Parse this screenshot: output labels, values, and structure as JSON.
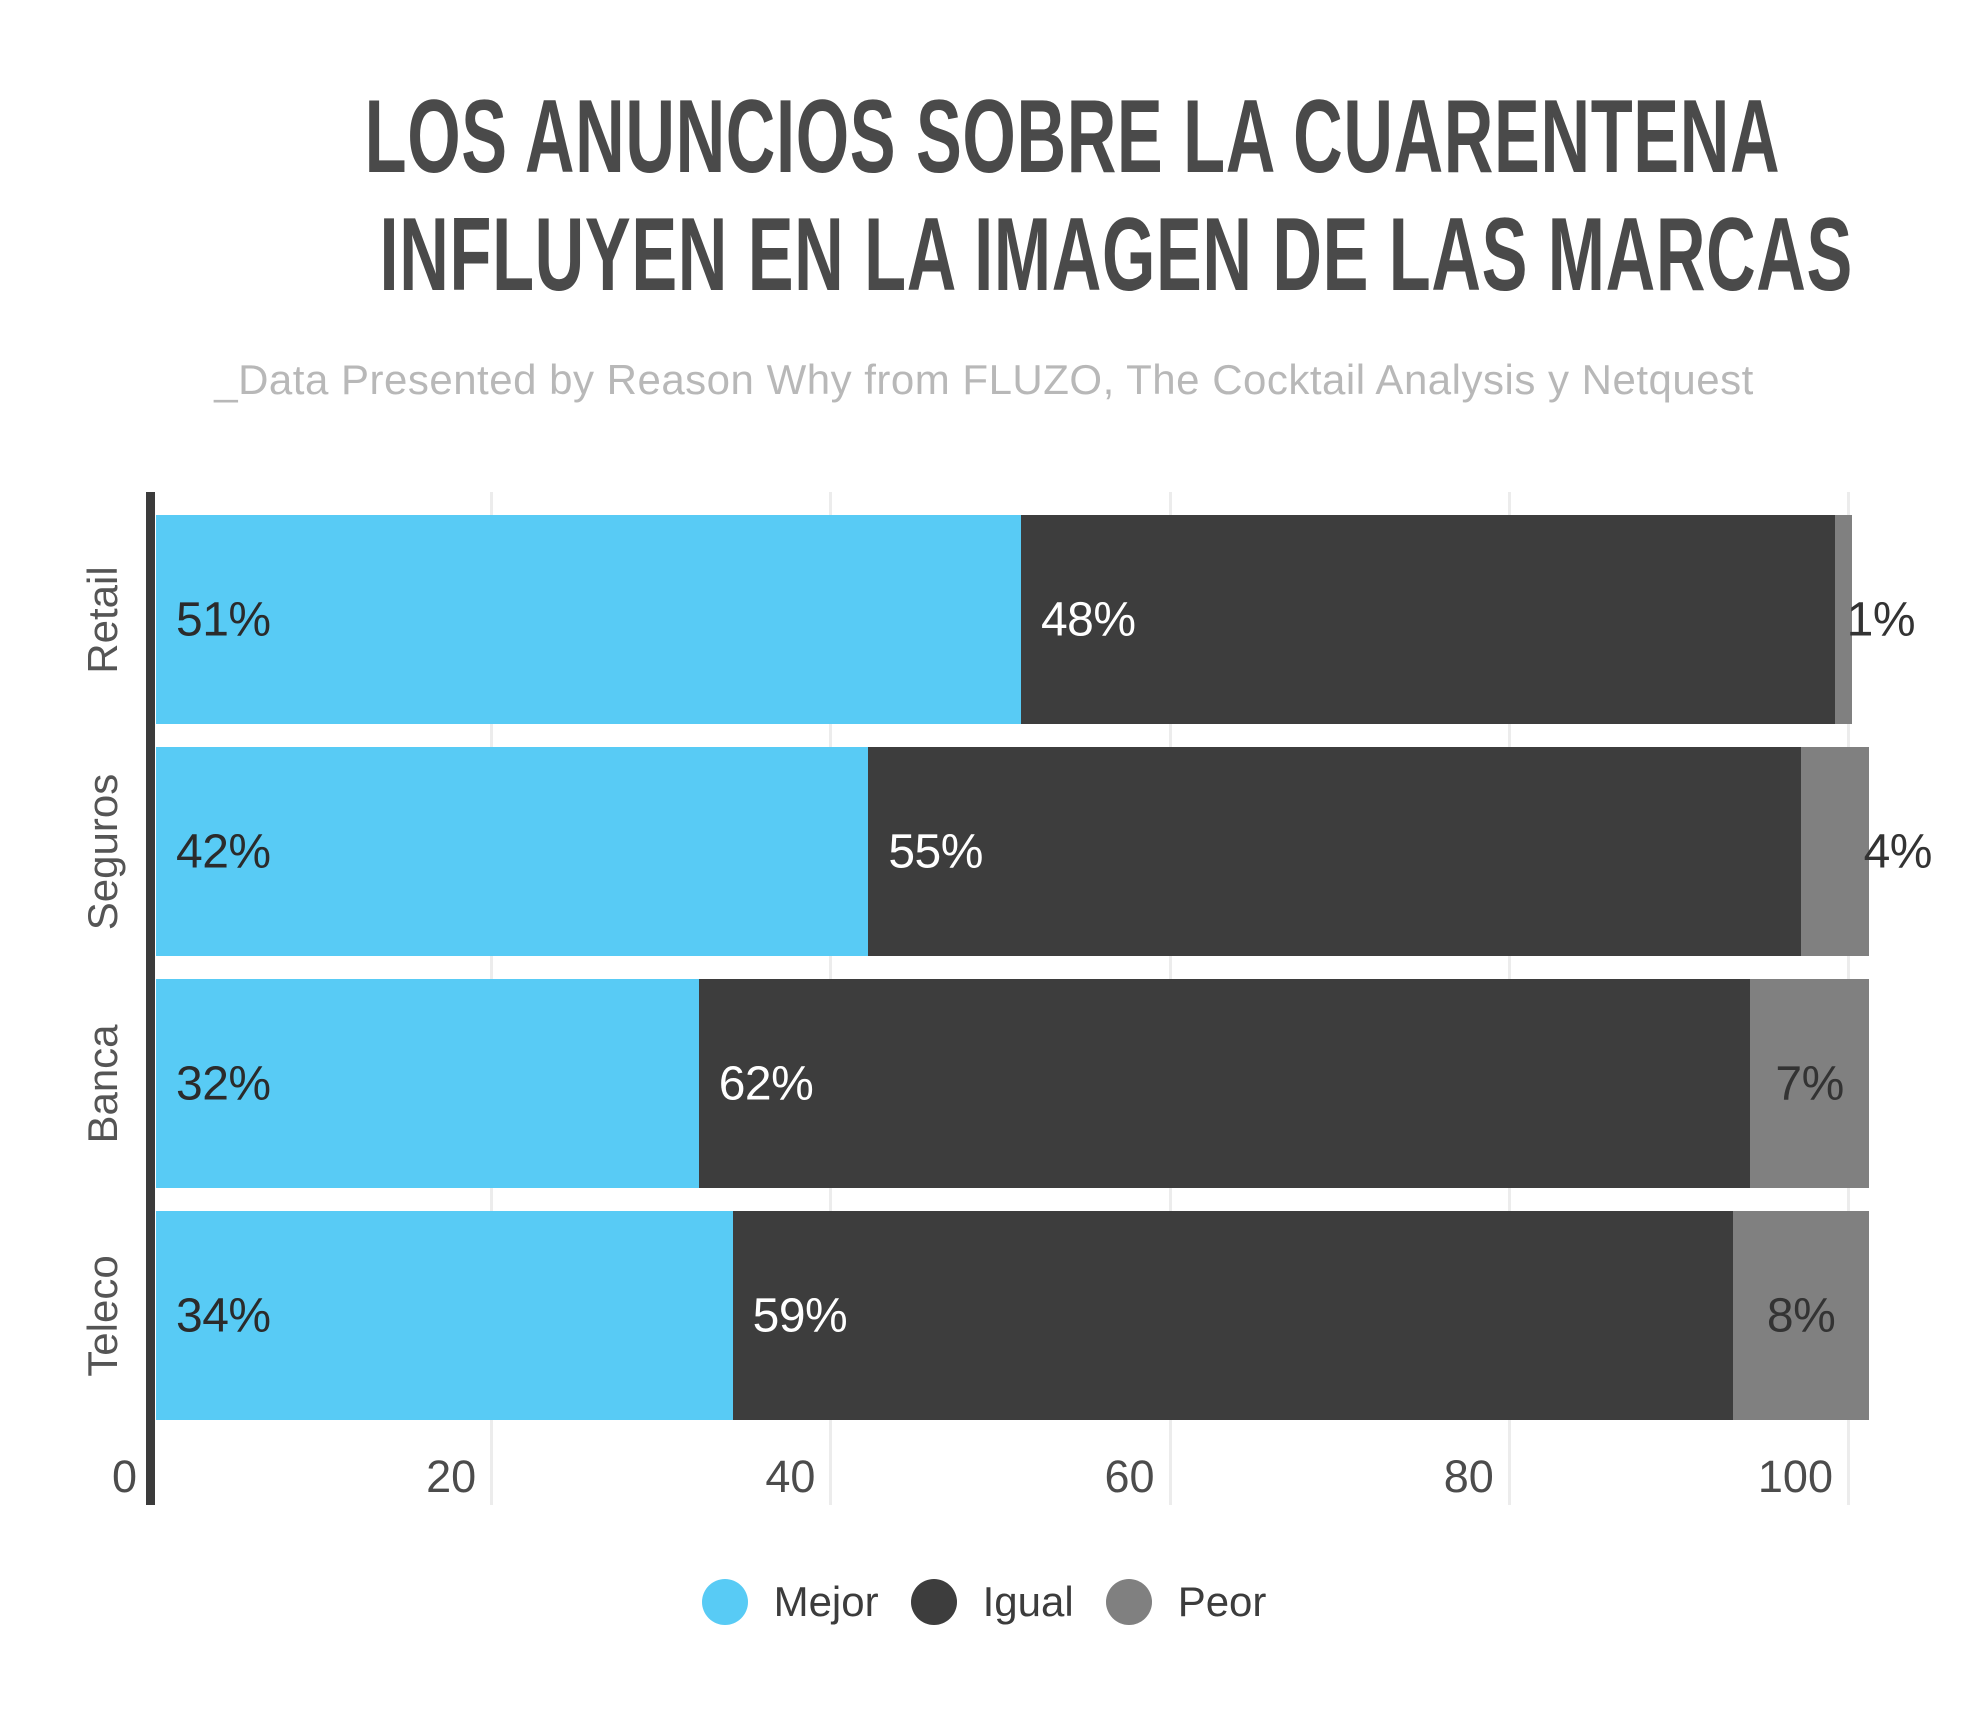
{
  "title": {
    "line1": "LOS ANUNCIOS SOBRE LA CUARENTENA",
    "line2": "INFLUYEN EN LA IMAGEN DE LAS MARCAS"
  },
  "subtitle": "_Data Presented by Reason Why from FLUZO, The Cocktail Analysis y Netquest",
  "chart_data": {
    "type": "bar",
    "orientation": "horizontal",
    "stacked": true,
    "categories": [
      "Retail",
      "Seguros",
      "Banca",
      "Teleco"
    ],
    "series": [
      {
        "name": "Mejor",
        "color": "#58cbf5",
        "label_color": "#2b2b2b",
        "values": [
          51,
          42,
          32,
          34
        ]
      },
      {
        "name": "Igual",
        "color": "#3d3d3d",
        "label_color": "#ffffff",
        "values": [
          48,
          55,
          62,
          59
        ]
      },
      {
        "name": "Peor",
        "color": "#808080",
        "label_color": "#333333",
        "values": [
          1,
          4,
          7,
          8
        ]
      }
    ],
    "value_suffix": "%",
    "x_ticks": [
      0,
      20,
      40,
      60,
      80,
      100
    ],
    "xlim": [
      0,
      104
    ],
    "grid": true,
    "grid_color": "#ececec",
    "axis_color": "#3b3b3b",
    "legend_position": "bottom"
  }
}
